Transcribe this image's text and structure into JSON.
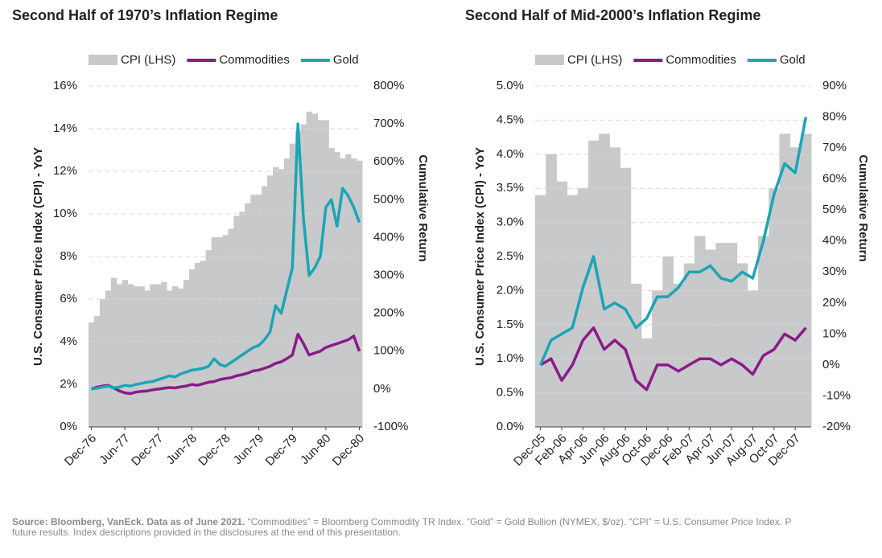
{
  "charts": [
    {
      "chart_data": {
        "type": "combo",
        "title": "Second Half of 1970’s Inflation Regime",
        "y_label": "U.S. Consumer Price Index (CPI) - YoY",
        "y2_label": "Cumulative Return",
        "categories": [
          "Dec-76",
          null,
          null,
          null,
          null,
          null,
          "Jun-77",
          null,
          null,
          null,
          null,
          null,
          "Dec-77",
          null,
          null,
          null,
          null,
          null,
          "Jun-78",
          null,
          null,
          null,
          null,
          null,
          "Dec-78",
          null,
          null,
          null,
          null,
          null,
          "Jun-79",
          null,
          null,
          null,
          null,
          null,
          "Dec-79",
          null,
          null,
          null,
          null,
          null,
          "Jun-80",
          null,
          null,
          null,
          null,
          null,
          "Dec-80"
        ],
        "series": [
          {
            "name": "CPI (LHS)",
            "kind": "area",
            "color": "#c8c9cb",
            "values": [
              4.9,
              5.2,
              6.0,
              6.4,
              7.0,
              6.7,
              6.9,
              6.7,
              6.6,
              6.6,
              6.4,
              6.7,
              6.7,
              6.8,
              6.4,
              6.6,
              6.5,
              6.9,
              7.4,
              7.7,
              7.8,
              8.3,
              8.9,
              8.9,
              9.0,
              9.3,
              9.9,
              10.1,
              10.5,
              10.9,
              10.9,
              11.3,
              11.8,
              12.2,
              12.1,
              12.6,
              13.3,
              13.9,
              14.2,
              14.8,
              14.7,
              14.4,
              14.4,
              13.1,
              12.9,
              12.6,
              12.8,
              12.6,
              12.5
            ]
          },
          {
            "name": "Commodities",
            "kind": "line",
            "axis": "y2",
            "color": "#8b1a8b",
            "values": [
              0,
              5,
              8,
              10,
              3,
              -5,
              -10,
              -12,
              -8,
              -6,
              -5,
              -2,
              0,
              2,
              4,
              3,
              6,
              8,
              12,
              10,
              14,
              18,
              20,
              25,
              28,
              30,
              35,
              38,
              42,
              48,
              50,
              55,
              60,
              68,
              72,
              80,
              90,
              145,
              120,
              90,
              95,
              100,
              110,
              115,
              120,
              125,
              130,
              140,
              100
            ]
          },
          {
            "name": "Gold",
            "kind": "line",
            "axis": "y2",
            "color": "#1ba5b5",
            "values": [
              0,
              2,
              5,
              8,
              3,
              5,
              10,
              8,
              12,
              15,
              18,
              20,
              25,
              30,
              35,
              32,
              40,
              45,
              50,
              52,
              55,
              60,
              80,
              65,
              60,
              70,
              80,
              90,
              100,
              110,
              115,
              130,
              150,
              220,
              200,
              260,
              320,
              700,
              450,
              300,
              320,
              350,
              480,
              500,
              430,
              530,
              510,
              480,
              440
            ]
          }
        ],
        "ylim": [
          0,
          16
        ],
        "yticks": [
          {
            "value": 0,
            "label": "0%"
          },
          {
            "value": 2,
            "label": "2%"
          },
          {
            "value": 4,
            "label": "4%"
          },
          {
            "value": 6,
            "label": "6%"
          },
          {
            "value": 8,
            "label": "8%"
          },
          {
            "value": 10,
            "label": "10%"
          },
          {
            "value": 12,
            "label": "12%"
          },
          {
            "value": 14,
            "label": "14%"
          },
          {
            "value": 16,
            "label": "16%"
          }
        ],
        "y2lim": [
          -100,
          800
        ],
        "y2ticks": [
          {
            "value": -100,
            "label": "-100%"
          },
          {
            "value": 0,
            "label": "0%"
          },
          {
            "value": 100,
            "label": "100%"
          },
          {
            "value": 200,
            "label": "200%"
          },
          {
            "value": 300,
            "label": "300%"
          },
          {
            "value": 400,
            "label": "400%"
          },
          {
            "value": 500,
            "label": "500%"
          },
          {
            "value": 600,
            "label": "600%"
          },
          {
            "value": 700,
            "label": "700%"
          },
          {
            "value": 800,
            "label": "800%"
          }
        ],
        "grid": true
      }
    },
    {
      "chart_data": {
        "type": "combo",
        "title": "Second Half of Mid-2000’s Inflation Regime",
        "y_label": "U.S. Consumer Price Index (CPI) - YoY",
        "y2_label": "Cumulative Return",
        "categories": [
          "Dec-05",
          null,
          "Feb-06",
          null,
          "Apr-06",
          null,
          "Jun-06",
          null,
          "Aug-06",
          null,
          "Oct-06",
          null,
          "Dec-06",
          null,
          "Feb-07",
          null,
          "Apr-07",
          null,
          "Jun-07",
          null,
          "Aug-07",
          null,
          "Oct-07",
          null,
          "Dec-07",
          null
        ],
        "series": [
          {
            "name": "CPI (LHS)",
            "kind": "area",
            "color": "#c8c9cb",
            "values": [
              3.4,
              4.0,
              3.6,
              3.4,
              3.5,
              4.2,
              4.3,
              4.1,
              3.8,
              2.1,
              1.3,
              2.0,
              2.5,
              2.1,
              2.4,
              2.8,
              2.6,
              2.7,
              2.7,
              2.4,
              2.0,
              2.8,
              3.5,
              4.3,
              4.1,
              4.3
            ]
          },
          {
            "name": "Commodities",
            "kind": "line",
            "axis": "y2",
            "color": "#8b1a8b",
            "values": [
              0,
              2,
              -5,
              0,
              8,
              12,
              5,
              8,
              5,
              -5,
              -8,
              0,
              0,
              -2,
              0,
              2,
              2,
              0,
              2,
              0,
              -3,
              3,
              5,
              10,
              8,
              12
            ]
          },
          {
            "name": "Gold",
            "kind": "line",
            "axis": "y2",
            "color": "#1ba5b5",
            "values": [
              0,
              8,
              10,
              12,
              25,
              35,
              18,
              20,
              18,
              12,
              15,
              22,
              22,
              25,
              30,
              30,
              32,
              28,
              27,
              30,
              28,
              40,
              55,
              65,
              62,
              80
            ]
          }
        ],
        "ylim": [
          0,
          5
        ],
        "yticks": [
          {
            "value": 0,
            "label": "0.0%"
          },
          {
            "value": 0.5,
            "label": "0.5%"
          },
          {
            "value": 1,
            "label": "1.0%"
          },
          {
            "value": 1.5,
            "label": "1.5%"
          },
          {
            "value": 2,
            "label": "2.0%"
          },
          {
            "value": 2.5,
            "label": "2.5%"
          },
          {
            "value": 3,
            "label": "3.0%"
          },
          {
            "value": 3.5,
            "label": "3.5%"
          },
          {
            "value": 4,
            "label": "4.0%"
          },
          {
            "value": 4.5,
            "label": "4.5%"
          },
          {
            "value": 5,
            "label": "5.0%"
          }
        ],
        "y2lim": [
          -20,
          90
        ],
        "y2ticks": [
          {
            "value": -20,
            "label": "-20%"
          },
          {
            "value": -10,
            "label": "-10%"
          },
          {
            "value": 0,
            "label": "0%"
          },
          {
            "value": 10,
            "label": "10%"
          },
          {
            "value": 20,
            "label": "20%"
          },
          {
            "value": 30,
            "label": "30%"
          },
          {
            "value": 40,
            "label": "40%"
          },
          {
            "value": 50,
            "label": "50%"
          },
          {
            "value": 60,
            "label": "60%"
          },
          {
            "value": 70,
            "label": "70%"
          },
          {
            "value": 80,
            "label": "80%"
          },
          {
            "value": 90,
            "label": "90%"
          }
        ],
        "grid": true
      }
    }
  ],
  "footnote": {
    "bold": "Source: Bloomberg, VanEck. Data as of June 2021.",
    "line1": " “Commodities” = Bloomberg Commodity TR Index. “Gold” = Gold Bullion (NYMEX, $/oz). “CPI” = U.S. Consumer Price Index. P",
    "line2": "future results. Index descriptions provided in the disclosures at the end of this presentation."
  }
}
